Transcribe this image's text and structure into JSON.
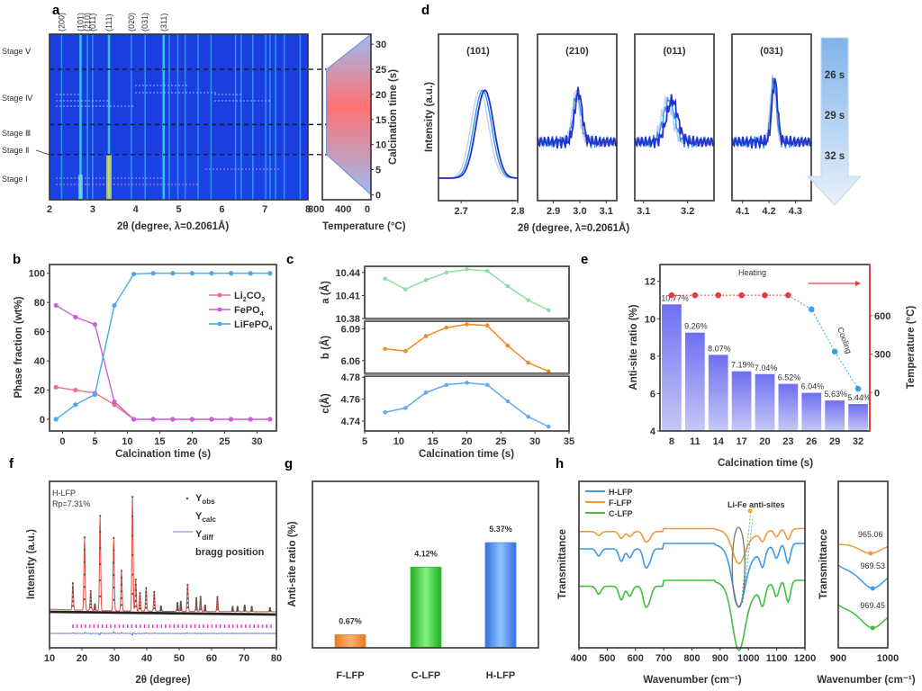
{
  "figure": {
    "panel_letters": [
      "a",
      "b",
      "c",
      "d",
      "e",
      "f",
      "g",
      "h"
    ]
  },
  "chart_data": [
    {
      "panel": "a",
      "type": "heatmap",
      "xlabel": "2θ (degree, λ=0.2061Å)",
      "xlim": [
        2,
        8
      ],
      "x_ticks": [
        "2",
        "3",
        "4",
        "5",
        "6",
        "7",
        "8"
      ],
      "ylim": [
        -1,
        32
      ],
      "peak_labels": [
        "(200)",
        "(101)",
        "(210)",
        "(011)",
        "(111)",
        "(020)",
        "(031)",
        "(311)"
      ],
      "peak_positions": [
        2.28,
        2.72,
        2.88,
        3.0,
        3.38,
        3.9,
        4.22,
        4.65
      ],
      "other_lines": [
        4.78,
        4.98,
        5.15,
        5.45,
        5.75,
        6.32,
        6.45,
        6.72,
        7.02,
        7.12,
        7.25,
        7.45,
        7.82
      ],
      "stages": [
        {
          "label": "Stage Ⅴ",
          "range": [
            25,
            32
          ]
        },
        {
          "label": "Stage Ⅳ",
          "range": [
            14,
            25
          ]
        },
        {
          "label": "Stage Ⅲ",
          "range": [
            8,
            14
          ]
        },
        {
          "label": "Stage Ⅱ",
          "range": [
            7.5,
            8.5
          ]
        },
        {
          "label": "Stage Ⅰ",
          "range": [
            -1,
            8
          ]
        }
      ],
      "stage_boundaries": [
        8,
        14,
        25
      ],
      "colors": {
        "bg": "#1a3ee0",
        "line": "#3fd0ff",
        "hot": "#e8e84a"
      }
    },
    {
      "panel": "a-right",
      "type": "area",
      "xlabel": "Temperature (°C)",
      "ylabel": "Calcination time (s)",
      "x_ticks": [
        "800",
        "400",
        "0"
      ],
      "y_ticks": [
        "0",
        "5",
        "10",
        "15",
        "20",
        "25",
        "30"
      ],
      "temperature_profile": {
        "time": [
          0,
          8,
          25,
          32
        ],
        "temp": [
          0,
          760,
          760,
          0
        ]
      },
      "ylim": [
        -1,
        32
      ]
    },
    {
      "panel": "d",
      "type": "line",
      "ylabel": "Intensity (a.u.)",
      "xlabel": "2θ (degree, λ=0.2061Å)",
      "subplots": [
        {
          "title": "(101)",
          "xlim": [
            2.66,
            2.8
          ],
          "x_ticks": [
            "2.7",
            "2.8"
          ],
          "centers": [
            2.733,
            2.738,
            2.742
          ],
          "width": 0.022
        },
        {
          "title": "(210)",
          "xlim": [
            2.84,
            3.14
          ],
          "x_ticks": [
            "2.9",
            "3.0",
            "3.1"
          ],
          "centers": [
            2.985,
            2.99,
            2.995
          ],
          "width": 0.02
        },
        {
          "title": "(011)",
          "xlim": [
            3.08,
            3.26
          ],
          "x_ticks": [
            "3.1",
            "3.2"
          ],
          "centers": [
            3.153,
            3.158,
            3.165
          ],
          "width": 0.018
        },
        {
          "title": "(031)",
          "xlim": [
            4.06,
            4.36
          ],
          "x_ticks": [
            "4.1",
            "4.2",
            "4.3"
          ],
          "centers": [
            4.215,
            4.218,
            4.222
          ],
          "width": 0.015
        }
      ],
      "legend": [
        {
          "label": "26 s",
          "color": "#c9cdf2"
        },
        {
          "label": "29 s",
          "color": "#2f9be6"
        },
        {
          "label": "32 s",
          "color": "#2433c9"
        }
      ]
    },
    {
      "panel": "b",
      "type": "line",
      "xlabel": "Calcination time (s)",
      "ylabel": "Phase fraction (wt%)",
      "xlim": [
        -2,
        33
      ],
      "ylim": [
        -8,
        106
      ],
      "x_ticks": [
        "0",
        "5",
        "10",
        "15",
        "20",
        "25",
        "30"
      ],
      "y_ticks": [
        "0",
        "20",
        "40",
        "60",
        "80",
        "100"
      ],
      "x": [
        -1,
        2,
        5,
        8,
        11,
        14,
        17,
        20,
        23,
        26,
        29,
        32
      ],
      "series": [
        {
          "name": "Li2CO3",
          "label_main": "Li",
          "label_sub1": "2",
          "label_mid": "CO",
          "label_sub2": "3",
          "color": "#ee6e8a",
          "values": [
            22,
            20,
            18,
            10,
            0,
            0,
            0,
            0,
            0,
            0,
            0,
            0
          ]
        },
        {
          "name": "FePO4",
          "label_main": "FePO",
          "label_sub1": "4",
          "color": "#cc5ee0",
          "values": [
            78,
            70,
            65,
            12,
            0,
            0,
            0,
            0,
            0,
            0,
            0,
            0
          ]
        },
        {
          "name": "LiFePO4",
          "label_main": "LiFePO",
          "label_sub1": "4",
          "color": "#4aa8ec",
          "values": [
            0,
            10,
            17,
            78,
            99.5,
            100,
            100,
            100,
            100,
            100,
            100,
            100
          ]
        }
      ]
    },
    {
      "panel": "c",
      "type": "line",
      "xlabel": "Calcination time (s)",
      "xlim": [
        5,
        35
      ],
      "x_ticks": [
        "5",
        "10",
        "15",
        "20",
        "25",
        "30",
        "35"
      ],
      "x": [
        8,
        11,
        14,
        17,
        20,
        23,
        26,
        29,
        32
      ],
      "series": [
        {
          "name": "a",
          "ylabel": "a (Å)",
          "color": "#8ee0a0",
          "ylim": [
            10.38,
            10.448
          ],
          "y_ticks": [
            "10.38",
            "10.41",
            "10.44"
          ],
          "y_tick_values": [
            10.38,
            10.41,
            10.44
          ],
          "values": [
            10.432,
            10.418,
            10.43,
            10.44,
            10.444,
            10.442,
            10.422,
            10.404,
            10.391
          ]
        },
        {
          "name": "b",
          "ylabel": "b (Å)",
          "color": "#f08a2a",
          "ylim": [
            6.048,
            6.097
          ],
          "y_ticks": [
            "6.06",
            "6.09"
          ],
          "y_tick_values": [
            6.06,
            6.09
          ],
          "values": [
            6.071,
            6.069,
            6.083,
            6.091,
            6.094,
            6.093,
            6.074,
            6.058,
            6.05
          ]
        },
        {
          "name": "c",
          "ylabel": "c(Å)",
          "color": "#62aaee",
          "ylim": [
            4.731,
            4.781
          ],
          "y_ticks": [
            "4.74",
            "4.76",
            "4.78"
          ],
          "y_tick_values": [
            4.74,
            4.76,
            4.78
          ],
          "values": [
            4.748,
            4.752,
            4.766,
            4.773,
            4.775,
            4.773,
            4.758,
            4.744,
            4.735
          ]
        }
      ]
    },
    {
      "panel": "e",
      "type": "bar",
      "xlabel": "Calcination time (s)",
      "ylabel": "Anti-site ratio (%)",
      "ylabel_right": "Temperature (°C)",
      "categories": [
        "8",
        "11",
        "14",
        "17",
        "20",
        "23",
        "26",
        "29",
        "32"
      ],
      "values": [
        10.77,
        9.26,
        8.07,
        7.19,
        7.04,
        6.52,
        6.04,
        5.63,
        5.44
      ],
      "value_labels": [
        "10.77%",
        "9.26%",
        "8.07%",
        "7.19%",
        "7.04%",
        "6.52%",
        "6.04%",
        "5.63%",
        "5.44%"
      ],
      "ylim": [
        4,
        12.9
      ],
      "y_ticks": [
        "4",
        "6",
        "8",
        "10",
        "12"
      ],
      "right_ylim": [
        -300,
        1000
      ],
      "right_y_ticks": [
        "0",
        "300",
        "600"
      ],
      "temperature": {
        "heating": [
          760,
          760,
          760,
          760,
          760,
          760
        ],
        "cooling": [
          650,
          320,
          30
        ]
      },
      "heating_label": "Heating",
      "cooling_label": "Cooling",
      "colors": {
        "bar_top": "#6f6ff2",
        "bar_bottom": "#c5c8f6",
        "heating": "#ea3a3a",
        "cooling": "#35a3e6",
        "label": "#8a8ae8"
      }
    },
    {
      "panel": "f",
      "type": "scatter",
      "xlabel": "2θ (degree)",
      "ylabel": "Intensity (a.u.)",
      "xlim": [
        10,
        80
      ],
      "x_ticks": [
        "10",
        "20",
        "30",
        "40",
        "50",
        "60",
        "70",
        "80"
      ],
      "annotation_sample": "H-LFP",
      "annotation_rp": "Rp=7.31%",
      "legend": [
        "Y_obs",
        "Y_calc",
        "Y_diff",
        "bragg position"
      ],
      "peaks": [
        {
          "x": 17.2,
          "h": 0.22
        },
        {
          "x": 20.8,
          "h": 0.6
        },
        {
          "x": 22.7,
          "h": 0.16
        },
        {
          "x": 24.0,
          "h": 0.05
        },
        {
          "x": 25.6,
          "h": 0.78
        },
        {
          "x": 29.8,
          "h": 0.6
        },
        {
          "x": 32.2,
          "h": 0.33
        },
        {
          "x": 35.6,
          "h": 0.94
        },
        {
          "x": 36.6,
          "h": 0.26
        },
        {
          "x": 37.9,
          "h": 0.15
        },
        {
          "x": 39.8,
          "h": 0.19
        },
        {
          "x": 42.3,
          "h": 0.16
        },
        {
          "x": 44.4,
          "h": 0.04
        },
        {
          "x": 49.5,
          "h": 0.07
        },
        {
          "x": 50.5,
          "h": 0.08
        },
        {
          "x": 52.6,
          "h": 0.22
        },
        {
          "x": 55.3,
          "h": 0.11
        },
        {
          "x": 56.6,
          "h": 0.12
        },
        {
          "x": 58.0,
          "h": 0.05
        },
        {
          "x": 61.8,
          "h": 0.12
        },
        {
          "x": 66.5,
          "h": 0.04
        },
        {
          "x": 68.0,
          "h": 0.04
        },
        {
          "x": 70.2,
          "h": 0.05
        },
        {
          "x": 72.4,
          "h": 0.04
        },
        {
          "x": 78.0,
          "h": 0.03
        }
      ],
      "colors": {
        "obs": "#555555",
        "calc": "#e04a3a",
        "diff": "#3850e0",
        "bragg": "#e040d0"
      }
    },
    {
      "panel": "g",
      "type": "bar",
      "ylabel": "Anti-site ratio (%)",
      "categories": [
        "F-LFP",
        "C-LFP",
        "H-LFP"
      ],
      "values": [
        0.67,
        4.12,
        5.37
      ],
      "value_labels": [
        "0.67%",
        "4.12%",
        "5.37%"
      ],
      "ylim": [
        0,
        8.5
      ],
      "colors": [
        "#f0882a",
        "#38c838",
        "#3f88ea"
      ]
    },
    {
      "panel": "h",
      "type": "line",
      "xlabel": "Wavenumber (cm⁻¹)",
      "ylabel": "Transmittance",
      "xlim": [
        400,
        1200
      ],
      "x_ticks": [
        "400",
        "500",
        "600",
        "700",
        "800",
        "900",
        "1000",
        "1100",
        "1200"
      ],
      "annotation": "Li-Fe anti-sites",
      "series": [
        {
          "name": "H-LFP",
          "color": "#3d9ae6",
          "min_wavenumber": 969.53
        },
        {
          "name": "F-LFP",
          "color": "#f09a40",
          "min_wavenumber": 965.06
        },
        {
          "name": "C-LFP",
          "color": "#3fbf3f",
          "min_wavenumber": 969.45
        }
      ]
    },
    {
      "panel": "h-inset",
      "type": "line",
      "xlabel": "Wavenumber (cm⁻¹)",
      "ylabel": "Transmittance",
      "xlim": [
        900,
        1000
      ],
      "x_ticks": [
        "900",
        "1000"
      ],
      "labels": [
        {
          "text": "965.06",
          "color": "#f09a40",
          "x": 965.06
        },
        {
          "text": "969.53",
          "color": "#3d9ae6",
          "x": 969.53
        },
        {
          "text": "969.45",
          "color": "#3fbf3f",
          "x": 969.45
        }
      ]
    }
  ]
}
